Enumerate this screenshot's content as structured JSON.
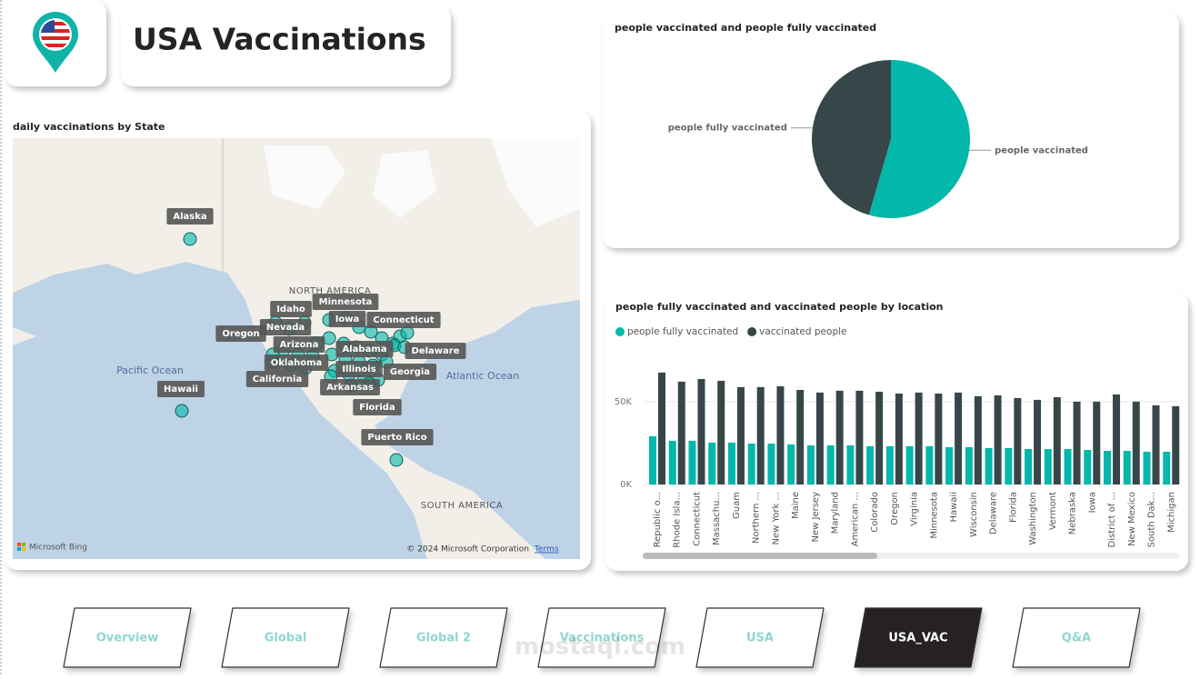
{
  "header": {
    "title": "USA Vaccinations"
  },
  "map": {
    "title": "daily vaccinations by State",
    "labels": [
      "Alaska",
      "Idaho",
      "Minnesota",
      "Iowa",
      "Connecticut",
      "Oregon",
      "Nevada",
      "Arizona",
      "Alabama",
      "Delaware",
      "Oklahoma",
      "Illinois",
      "Georgia",
      "California",
      "Arkansas",
      "Hawaii",
      "Florida",
      "Puerto Rico"
    ],
    "regions": [
      "NORTH AMERICA",
      "SOUTH AMERICA"
    ],
    "oceans": [
      "Pacific Ocean",
      "Atlantic Ocean"
    ],
    "credit": "Microsoft Bing",
    "copyright": "© 2024 Microsoft Corporation",
    "terms": "Terms"
  },
  "chart_data": [
    {
      "type": "pie",
      "title": "people vaccinated and people fully vaccinated",
      "categories": [
        "people vaccinated",
        "people fully vaccinated"
      ],
      "values": [
        54.5,
        45.5
      ],
      "colors": [
        "#01b8aa",
        "#374649"
      ]
    },
    {
      "type": "bar",
      "title": "people fully vaccinated and vaccinated people by location",
      "categories": [
        "Republic o...",
        "Rhode Isla...",
        "Connecticut",
        "Massachu...",
        "Guam",
        "Northern ...",
        "New York ...",
        "Maine",
        "New Jersey",
        "Maryland",
        "American ...",
        "Colorado",
        "Oregon",
        "Virginia",
        "Minnesota",
        "Hawaii",
        "Wisconsin",
        "Delaware",
        "Florida",
        "Washington",
        "Vermont",
        "Nebraska",
        "Iowa",
        "District of ...",
        "New Mexico",
        "South Dak...",
        "Michigan"
      ],
      "series": [
        {
          "name": "people fully vaccinated",
          "color": "#01b8aa",
          "values": [
            29100,
            26400,
            26400,
            25300,
            25300,
            24700,
            24700,
            24200,
            23600,
            23600,
            23600,
            23100,
            23100,
            23100,
            23100,
            22500,
            22500,
            22000,
            22000,
            21400,
            21400,
            21400,
            20900,
            20300,
            20300,
            19800,
            19800
          ]
        },
        {
          "name": "vaccinated people",
          "color": "#374649",
          "values": [
            67600,
            62100,
            63700,
            62600,
            58800,
            58800,
            59300,
            57100,
            55500,
            56600,
            56600,
            56000,
            54900,
            55500,
            54900,
            55500,
            53300,
            53800,
            52200,
            51100,
            52700,
            50000,
            50000,
            54400,
            50000,
            47800,
            47300
          ]
        }
      ],
      "ylim": [
        0,
        73000
      ],
      "yticks": [
        {
          "value": 0,
          "label": "0K"
        },
        {
          "value": 50000,
          "label": "50K"
        }
      ],
      "grid": true,
      "legend": "top-left"
    }
  ],
  "nav": [
    "Overview",
    "Global",
    "Global 2",
    "Vaccinations",
    "USA",
    "USA_VAC",
    "Q&A"
  ],
  "nav_active": 5,
  "watermark": "mostaql.com"
}
